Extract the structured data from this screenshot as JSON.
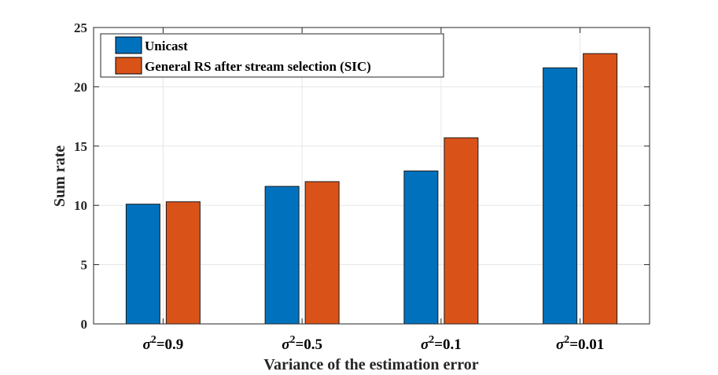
{
  "chart_data": {
    "type": "bar",
    "categories": [
      "σ²=0.9",
      "σ²=0.5",
      "σ²=0.1",
      "σ²=0.01"
    ],
    "category_parts": [
      {
        "sym": "σ",
        "sup": "2",
        "rest": "=0.9"
      },
      {
        "sym": "σ",
        "sup": "2",
        "rest": "=0.5"
      },
      {
        "sym": "σ",
        "sup": "2",
        "rest": "=0.1"
      },
      {
        "sym": "σ",
        "sup": "2",
        "rest": "=0.01"
      }
    ],
    "series": [
      {
        "name": "Unicast",
        "color": "#0072BD",
        "values": [
          10.1,
          11.6,
          12.9,
          21.6
        ]
      },
      {
        "name": "General RS after stream selection (SIC)",
        "color": "#D95319",
        "values": [
          10.3,
          12.0,
          15.7,
          22.8
        ]
      }
    ],
    "title": "",
    "xlabel": "Variance of the estimation error",
    "ylabel": "Sum rate",
    "ylim": [
      0,
      25
    ],
    "yticks": [
      0,
      5,
      10,
      15,
      20,
      25
    ],
    "grid": true,
    "legend_position": "top-left"
  }
}
